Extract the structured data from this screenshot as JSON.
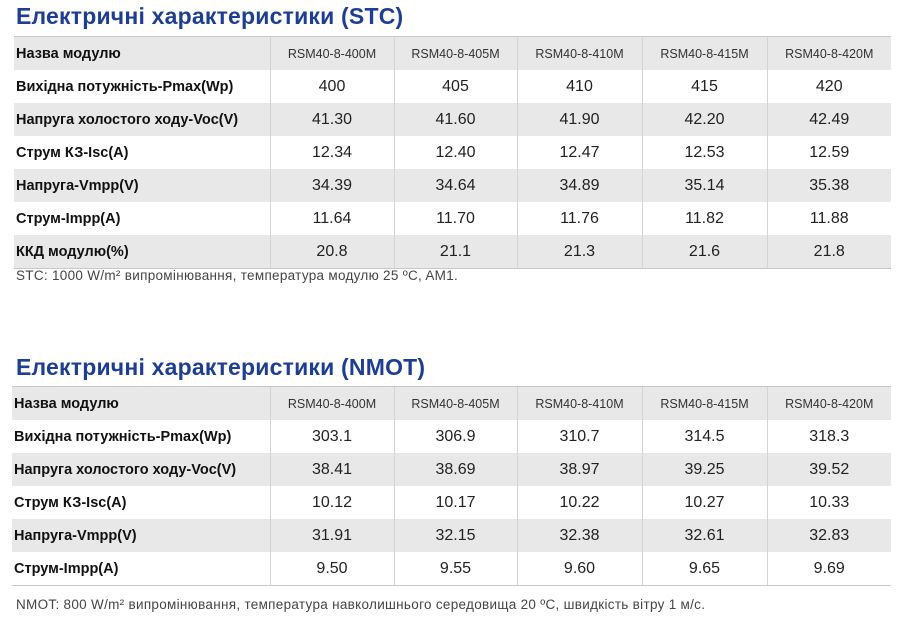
{
  "stc": {
    "title": "Електричні характеристики (STC)",
    "header": {
      "label": "Назва модулю",
      "models": [
        "RSM40-8-400M",
        "RSM40-8-405M",
        "RSM40-8-410M",
        "RSM40-8-415M",
        "RSM40-8-420M"
      ]
    },
    "rows": [
      {
        "label": "Вихідна потужність-Pmax(Wp)",
        "values": [
          "400",
          "405",
          "410",
          "415",
          "420"
        ]
      },
      {
        "label": "Напруга холостого ходу-Voc(V)",
        "values": [
          "41.30",
          "41.60",
          "41.90",
          "42.20",
          "42.49"
        ]
      },
      {
        "label": "Струм КЗ-Isc(A)",
        "values": [
          "12.34",
          "12.40",
          "12.47",
          "12.53",
          "12.59"
        ]
      },
      {
        "label": "Напруга-Vmpp(V)",
        "values": [
          "34.39",
          "34.64",
          "34.89",
          "35.14",
          "35.38"
        ]
      },
      {
        "label": "Струм-Impp(A)",
        "values": [
          "11.64",
          "11.70",
          "11.76",
          "11.82",
          "11.88"
        ]
      },
      {
        "label": "ККД модулю(%)",
        "values": [
          "20.8",
          "21.1",
          "21.3",
          "21.6",
          "21.8"
        ]
      }
    ],
    "note": "STC: 1000 W/m² випромінювання, температура модулю 25 ºC, AM1."
  },
  "nmot": {
    "title": "Електричні характеристики (NMOT)",
    "header": {
      "label": "Назва модулю",
      "models": [
        "RSM40-8-400M",
        "RSM40-8-405M",
        "RSM40-8-410M",
        "RSM40-8-415M",
        "RSM40-8-420M"
      ]
    },
    "rows": [
      {
        "label": "Вихідна потужність-Pmax(Wp)",
        "values": [
          "303.1",
          "306.9",
          "310.7",
          "314.5",
          "318.3"
        ]
      },
      {
        "label": "Напруга холостого ходу-Voc(V)",
        "values": [
          "38.41",
          "38.69",
          "38.97",
          "39.25",
          "39.52"
        ]
      },
      {
        "label": "Струм КЗ-Isc(A)",
        "values": [
          "10.12",
          "10.17",
          "10.22",
          "10.27",
          "10.33"
        ]
      },
      {
        "label": "Напруга-Vmpp(V)",
        "values": [
          "31.91",
          "32.15",
          "32.38",
          "32.61",
          "32.83"
        ]
      },
      {
        "label": "Струм-Impp(A)",
        "values": [
          "9.50",
          "9.55",
          "9.60",
          "9.65",
          "9.69"
        ]
      }
    ],
    "note": "NMOT: 800 W/m² випромінювання, температура навколишнього середовища 20 ºC, швидкість вітру 1 м/с."
  }
}
